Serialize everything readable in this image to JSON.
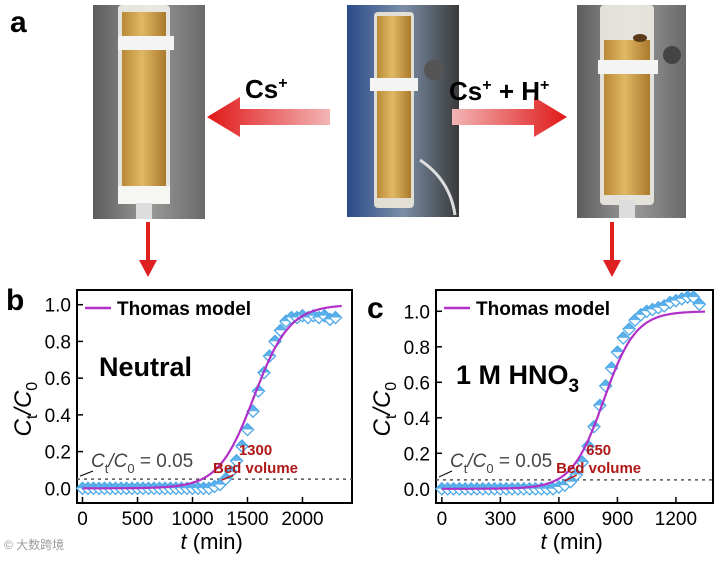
{
  "panels": {
    "a": "a",
    "b": "b",
    "c": "c"
  },
  "arrows": {
    "left_label_main": "Cs",
    "left_label_sup": "+",
    "right_label_main_1": "Cs",
    "right_label_sup_1": "+",
    "right_label_plus": " + H",
    "right_label_sup_2": "+",
    "color": "#e02020"
  },
  "photos": {
    "column_bg": "#7a7a7a",
    "resin_color": "#d7a84a"
  },
  "watermark": "© 大数跨境",
  "chart_data": [
    {
      "type": "scatter",
      "panel": "b",
      "condition_label": "Neutral",
      "legend_entry": "Thomas model",
      "xlabel_italic": "t",
      "xlabel_rest": " (min)",
      "ylabel_C": "C",
      "ylabel_sub_t": "t",
      "ylabel_slash": "/C",
      "ylabel_sub_0": "0",
      "threshold_text_C": "C",
      "threshold_text_t": "t",
      "threshold_text_slash": "/C",
      "threshold_text_0": "0",
      "threshold_text_value": " = 0.05",
      "threshold": 0.05,
      "annotation_value": "1300",
      "annotation_text": "Bed volume",
      "annotation_x": 1300,
      "xlim": [
        -50,
        2450
      ],
      "ylim": [
        -0.08,
        1.08
      ],
      "xticks": [
        0,
        500,
        1000,
        1500,
        2000
      ],
      "yticks": [
        0.0,
        0.2,
        0.4,
        0.6,
        0.8,
        1.0
      ],
      "ytick_labels": [
        "0.0",
        "0.2",
        "0.4",
        "0.6",
        "0.8",
        "1.0"
      ],
      "series": [
        {
          "name": "Thomas model",
          "kind": "line",
          "color": "#b030c8",
          "model": {
            "k": 0.0062,
            "x0": 1560,
            "max": 1.0
          }
        },
        {
          "kind": "markers",
          "color": "#4da8e8",
          "x": [
            0,
            50,
            100,
            150,
            200,
            250,
            300,
            350,
            400,
            450,
            500,
            550,
            600,
            650,
            700,
            750,
            800,
            850,
            900,
            950,
            1000,
            1050,
            1100,
            1150,
            1200,
            1250,
            1300,
            1350,
            1400,
            1450,
            1500,
            1550,
            1600,
            1650,
            1700,
            1750,
            1800,
            1850,
            1900,
            1950,
            2000,
            2050,
            2100,
            2150,
            2200,
            2250,
            2300
          ],
          "y": [
            0,
            0,
            0,
            0,
            0,
            0,
            0,
            0,
            0,
            0,
            0,
            0,
            0,
            0,
            0,
            0,
            0,
            0,
            0,
            0,
            0,
            0,
            0,
            0,
            0.01,
            0.02,
            0.05,
            0.09,
            0.15,
            0.23,
            0.32,
            0.42,
            0.53,
            0.63,
            0.72,
            0.8,
            0.86,
            0.91,
            0.93,
            0.93,
            0.94,
            0.93,
            0.94,
            0.93,
            0.94,
            0.92,
            0.93
          ]
        }
      ]
    },
    {
      "type": "scatter",
      "panel": "c",
      "condition_label_main": "1 M HNO",
      "condition_label_sub": "3",
      "legend_entry": "Thomas model",
      "xlabel_italic": "t",
      "xlabel_rest": " (min)",
      "ylabel_C": "C",
      "ylabel_sub_t": "t",
      "ylabel_slash": "/C",
      "ylabel_sub_0": "0",
      "threshold_text_C": "C",
      "threshold_text_t": "t",
      "threshold_text_slash": "/C",
      "threshold_text_0": "0",
      "threshold_text_value": " = 0.05",
      "threshold": 0.05,
      "annotation_value": "650",
      "annotation_text": "Bed volume",
      "annotation_x": 650,
      "xlim": [
        -30,
        1390
      ],
      "ylim": [
        -0.08,
        1.12
      ],
      "xticks": [
        0,
        300,
        600,
        900,
        1200
      ],
      "yticks": [
        0.0,
        0.2,
        0.4,
        0.6,
        0.8,
        1.0
      ],
      "ytick_labels": [
        "0.0",
        "0.2",
        "0.4",
        "0.6",
        "0.8",
        "1.0"
      ],
      "series": [
        {
          "name": "Thomas model",
          "kind": "line",
          "color": "#b030c8",
          "model": {
            "k": 0.0122,
            "x0": 830,
            "max": 1.0
          }
        },
        {
          "kind": "markers",
          "color": "#4da8e8",
          "x": [
            0,
            30,
            60,
            90,
            120,
            150,
            180,
            210,
            240,
            270,
            300,
            330,
            360,
            390,
            420,
            450,
            480,
            510,
            540,
            570,
            600,
            630,
            660,
            690,
            720,
            750,
            780,
            810,
            840,
            870,
            900,
            930,
            960,
            990,
            1020,
            1050,
            1080,
            1110,
            1140,
            1170,
            1200,
            1230,
            1260,
            1290,
            1320
          ],
          "y": [
            0,
            0,
            0,
            0,
            0,
            0,
            0,
            0,
            0,
            0,
            0,
            0,
            0,
            0,
            0,
            0,
            0,
            0,
            0,
            0,
            0.01,
            0.02,
            0.04,
            0.08,
            0.15,
            0.24,
            0.35,
            0.47,
            0.58,
            0.68,
            0.77,
            0.85,
            0.9,
            0.95,
            0.98,
            1.0,
            1.01,
            1.02,
            1.03,
            1.05,
            1.06,
            1.07,
            1.08,
            1.08,
            1.04
          ]
        }
      ]
    }
  ]
}
